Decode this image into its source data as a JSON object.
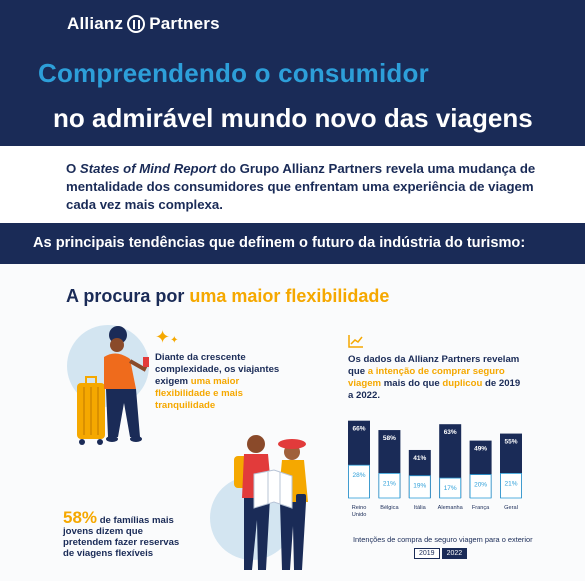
{
  "header": {
    "brand": "Allianz",
    "brand_suffix": "Partners",
    "title_line1": "Compreendendo o consumidor",
    "title_line2": "no admirável mundo novo das viagens"
  },
  "intro": {
    "part1": "O ",
    "report": "States of Mind Report",
    "part2": " do Grupo Allianz Partners revela uma mudança de mentalidade dos consumidores que enfrentam uma experiência de viagem cada vez mais complexa."
  },
  "trends_heading": "As principais tendências que definem o futuro da indústria do turismo:",
  "section": {
    "title_prefix": "A procura por ",
    "title_highlight": "uma maior flexibilidade"
  },
  "desc1": {
    "plain": "Diante da crescente complexidade, os viajantes exigem ",
    "highlight": "uma maior flexibilidade e mais tranquilidade"
  },
  "stat": {
    "value": "58%",
    "text": " de famílias mais jovens dizem que pretendem fazer reservas de viagens flexíveis"
  },
  "desc2": {
    "p1": "Os dados da Allianz Partners revelam que ",
    "h1": "a intenção de comprar seguro viagem",
    "p2": " mais do que ",
    "h2": "duplicou",
    "p3": " de 2019 a 2022."
  },
  "colors": {
    "navy": "#1a2b57",
    "blue": "#2d9fd9",
    "orange": "#f5a800",
    "light_blue": "#d3e5f1"
  },
  "chart_data": {
    "type": "bar",
    "categories": [
      "Reino Unido",
      "Bélgica",
      "Itália",
      "Alemanha",
      "França",
      "Geral"
    ],
    "series": [
      {
        "name": "2019",
        "values": [
          28,
          21,
          19,
          17,
          20,
          21
        ]
      },
      {
        "name": "2022",
        "values": [
          66,
          58,
          41,
          63,
          49,
          55
        ]
      }
    ],
    "value_suffix": "%",
    "caption": "Intenções de compra de seguro viagem para o exterior",
    "legend": [
      "2019",
      "2022"
    ],
    "legend_position": "bottom"
  }
}
